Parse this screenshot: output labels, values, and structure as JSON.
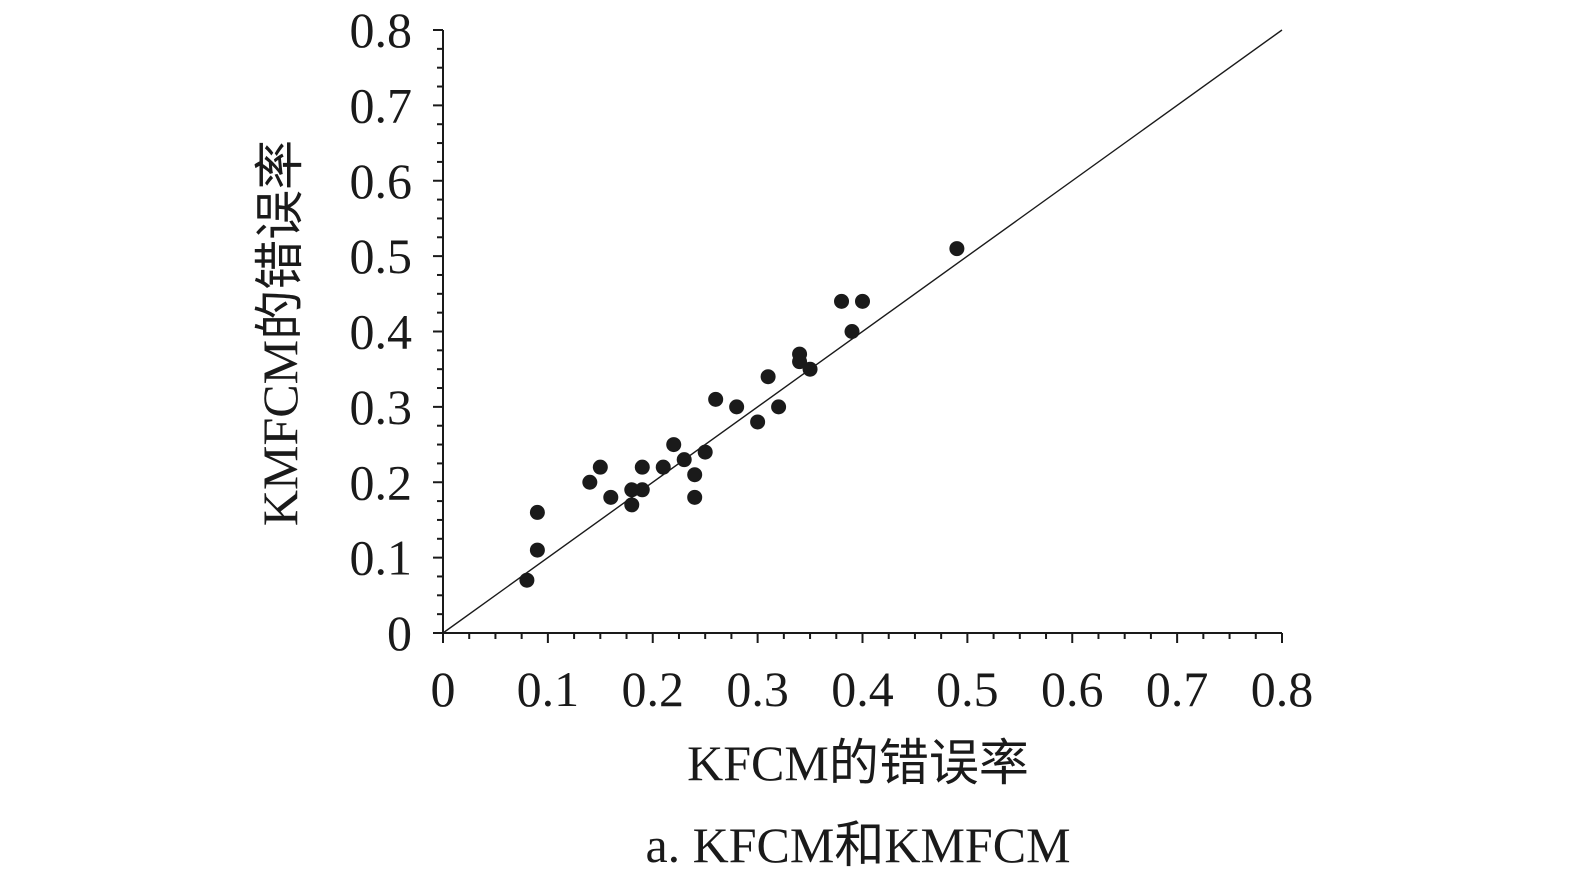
{
  "chart_data": {
    "type": "scatter",
    "xlabel": "KFCM的错误率",
    "ylabel": "KMFCM的错误率",
    "caption": "a. KFCM和KMFCM",
    "xlim": [
      0,
      0.8
    ],
    "ylim": [
      0,
      0.8
    ],
    "x_ticks": [
      "0",
      "0.1",
      "0.2",
      "0.3",
      "0.4",
      "0.5",
      "0.6",
      "0.7",
      "0.8"
    ],
    "y_ticks": [
      "0",
      "0.1",
      "0.2",
      "0.3",
      "0.4",
      "0.5",
      "0.6",
      "0.7",
      "0.8"
    ],
    "grid": false,
    "reference_line": {
      "from": [
        0,
        0
      ],
      "to": [
        0.8,
        0.8
      ]
    },
    "marker_color": "#1a1a1a",
    "points": [
      {
        "x": 0.08,
        "y": 0.07
      },
      {
        "x": 0.09,
        "y": 0.11
      },
      {
        "x": 0.09,
        "y": 0.16
      },
      {
        "x": 0.14,
        "y": 0.2
      },
      {
        "x": 0.15,
        "y": 0.22
      },
      {
        "x": 0.16,
        "y": 0.18
      },
      {
        "x": 0.18,
        "y": 0.17
      },
      {
        "x": 0.18,
        "y": 0.19
      },
      {
        "x": 0.19,
        "y": 0.19
      },
      {
        "x": 0.19,
        "y": 0.22
      },
      {
        "x": 0.21,
        "y": 0.22
      },
      {
        "x": 0.22,
        "y": 0.25
      },
      {
        "x": 0.23,
        "y": 0.23
      },
      {
        "x": 0.24,
        "y": 0.21
      },
      {
        "x": 0.24,
        "y": 0.18
      },
      {
        "x": 0.25,
        "y": 0.24
      },
      {
        "x": 0.26,
        "y": 0.31
      },
      {
        "x": 0.28,
        "y": 0.3
      },
      {
        "x": 0.3,
        "y": 0.28
      },
      {
        "x": 0.31,
        "y": 0.34
      },
      {
        "x": 0.32,
        "y": 0.3
      },
      {
        "x": 0.34,
        "y": 0.37
      },
      {
        "x": 0.34,
        "y": 0.36
      },
      {
        "x": 0.35,
        "y": 0.35
      },
      {
        "x": 0.38,
        "y": 0.44
      },
      {
        "x": 0.39,
        "y": 0.4
      },
      {
        "x": 0.4,
        "y": 0.44
      },
      {
        "x": 0.49,
        "y": 0.51
      }
    ]
  }
}
